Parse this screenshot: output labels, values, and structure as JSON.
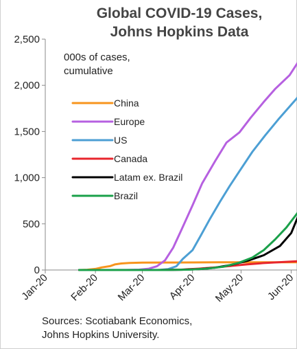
{
  "chart_data": {
    "type": "line",
    "title_lines": [
      "Global COVID-19 Cases,",
      "Johns Hopkins Data"
    ],
    "unit_label_lines": [
      "000s of cases,",
      "cumulative"
    ],
    "x_ticks": [
      "Jan-20",
      "Feb-20",
      "Mar-20",
      "Apr-20",
      "May-20",
      "Jun-20"
    ],
    "xlim": [
      "2020-01-01",
      "2020-06-05"
    ],
    "y_ticks": [
      "0",
      "500",
      "1,000",
      "1,500",
      "2,000",
      "2,500"
    ],
    "ylim": [
      0,
      2500
    ],
    "grid": false,
    "legend_position": "left",
    "series": [
      {
        "name": "China",
        "color": "#f7941d",
        "points": [
          [
            "2020-01-22",
            0
          ],
          [
            "2020-01-27",
            3
          ],
          [
            "2020-02-01",
            12
          ],
          [
            "2020-02-05",
            28
          ],
          [
            "2020-02-10",
            42
          ],
          [
            "2020-02-13",
            60
          ],
          [
            "2020-02-17",
            71
          ],
          [
            "2020-02-22",
            77
          ],
          [
            "2020-03-01",
            80
          ],
          [
            "2020-03-15",
            81
          ],
          [
            "2020-04-01",
            82
          ],
          [
            "2020-04-17",
            84
          ],
          [
            "2020-05-15",
            84
          ],
          [
            "2020-06-05",
            84
          ]
        ]
      },
      {
        "name": "Europe",
        "color": "#b660e0",
        "points": [
          [
            "2020-01-22",
            0
          ],
          [
            "2020-02-20",
            1
          ],
          [
            "2020-02-28",
            4
          ],
          [
            "2020-03-05",
            14
          ],
          [
            "2020-03-10",
            40
          ],
          [
            "2020-03-15",
            105
          ],
          [
            "2020-03-20",
            240
          ],
          [
            "2020-03-25",
            430
          ],
          [
            "2020-04-01",
            700
          ],
          [
            "2020-04-07",
            940
          ],
          [
            "2020-04-15",
            1180
          ],
          [
            "2020-04-22",
            1380
          ],
          [
            "2020-04-30",
            1490
          ],
          [
            "2020-05-07",
            1650
          ],
          [
            "2020-05-15",
            1820
          ],
          [
            "2020-05-22",
            1960
          ],
          [
            "2020-05-31",
            2110
          ],
          [
            "2020-06-05",
            2245
          ]
        ]
      },
      {
        "name": "US",
        "color": "#4c9fd4",
        "points": [
          [
            "2020-01-22",
            0
          ],
          [
            "2020-03-05",
            0
          ],
          [
            "2020-03-12",
            2
          ],
          [
            "2020-03-17",
            10
          ],
          [
            "2020-03-22",
            40
          ],
          [
            "2020-03-26",
            120
          ],
          [
            "2020-04-01",
            215
          ],
          [
            "2020-04-06",
            370
          ],
          [
            "2020-04-12",
            560
          ],
          [
            "2020-04-18",
            740
          ],
          [
            "2020-04-24",
            910
          ],
          [
            "2020-04-30",
            1070
          ],
          [
            "2020-05-08",
            1280
          ],
          [
            "2020-05-16",
            1460
          ],
          [
            "2020-05-24",
            1630
          ],
          [
            "2020-06-01",
            1790
          ],
          [
            "2020-06-05",
            1870
          ]
        ]
      },
      {
        "name": "Canada",
        "color": "#e8262c",
        "points": [
          [
            "2020-01-22",
            0
          ],
          [
            "2020-03-10",
            0
          ],
          [
            "2020-03-25",
            4
          ],
          [
            "2020-04-05",
            15
          ],
          [
            "2020-04-15",
            28
          ],
          [
            "2020-04-25",
            45
          ],
          [
            "2020-05-05",
            62
          ],
          [
            "2020-05-15",
            75
          ],
          [
            "2020-05-25",
            85
          ],
          [
            "2020-06-05",
            95
          ]
        ]
      },
      {
        "name": "Latam ex. Brazil",
        "color": "#000000",
        "points": [
          [
            "2020-01-22",
            0
          ],
          [
            "2020-03-10",
            0
          ],
          [
            "2020-03-25",
            3
          ],
          [
            "2020-04-05",
            10
          ],
          [
            "2020-04-15",
            25
          ],
          [
            "2020-04-25",
            55
          ],
          [
            "2020-05-05",
            100
          ],
          [
            "2020-05-15",
            160
          ],
          [
            "2020-05-25",
            260
          ],
          [
            "2020-06-01",
            400
          ],
          [
            "2020-06-05",
            570
          ]
        ]
      },
      {
        "name": "Brazil",
        "color": "#1aa04a",
        "points": [
          [
            "2020-01-22",
            0
          ],
          [
            "2020-03-15",
            0
          ],
          [
            "2020-03-30",
            4
          ],
          [
            "2020-04-10",
            15
          ],
          [
            "2020-04-20",
            35
          ],
          [
            "2020-04-30",
            80
          ],
          [
            "2020-05-08",
            135
          ],
          [
            "2020-05-15",
            215
          ],
          [
            "2020-05-22",
            330
          ],
          [
            "2020-05-29",
            460
          ],
          [
            "2020-06-05",
            620
          ]
        ]
      }
    ]
  },
  "source_lines": [
    "Sources: Scotiabank Economics,",
    "Johns Hopkins University."
  ]
}
